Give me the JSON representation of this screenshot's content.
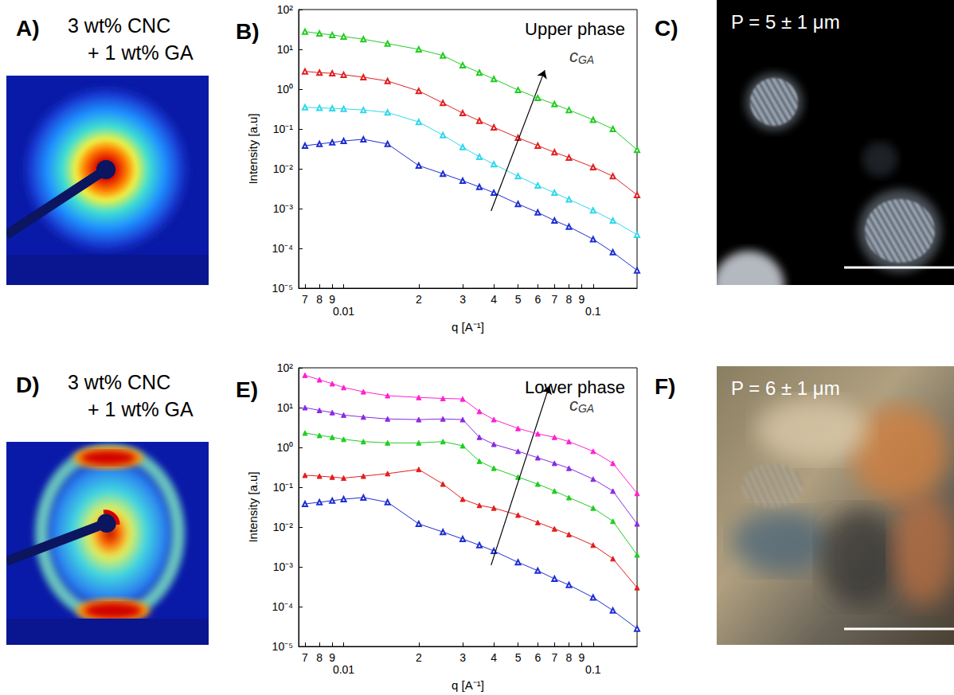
{
  "chart_data": [
    {
      "type": "line",
      "panel": "B)",
      "title": "Upper phase",
      "xlabel": "q [A⁻¹]",
      "ylabel": "Intensity [a.u]",
      "log": true,
      "grid": false,
      "xlim": [
        0.0066,
        0.15
      ],
      "ylim": [
        1e-05,
        100
      ],
      "xticks": [
        {
          "value": 0.007,
          "label": "7"
        },
        {
          "value": 0.008,
          "label": "8"
        },
        {
          "value": 0.009,
          "label": "9"
        },
        0.01,
        {
          "value": 0.02,
          "label": "2"
        },
        {
          "value": 0.03,
          "label": "3"
        },
        {
          "value": 0.04,
          "label": "4"
        },
        {
          "value": 0.05,
          "label": "5"
        },
        {
          "value": 0.06,
          "label": "6"
        },
        {
          "value": 0.07,
          "label": "7"
        },
        {
          "value": 0.08,
          "label": "8"
        },
        {
          "value": 0.09,
          "label": "9"
        },
        0.1
      ],
      "yticks": [
        {
          "value": 1e-05,
          "label": "10⁻⁵"
        },
        {
          "value": 0.0001,
          "label": "10⁻⁴"
        },
        {
          "value": 0.001,
          "label": "10⁻³"
        },
        {
          "value": 0.01,
          "label": "10⁻²"
        },
        {
          "value": 0.1,
          "label": "10⁻¹"
        },
        {
          "value": 1,
          "label": "10⁰"
        },
        {
          "value": 10,
          "label": "10¹"
        },
        {
          "value": 100,
          "label": "10²"
        }
      ],
      "x": [
        0.007,
        0.008,
        0.009,
        0.01,
        0.012,
        0.015,
        0.02,
        0.025,
        0.03,
        0.035,
        0.04,
        0.05,
        0.06,
        0.07,
        0.08,
        0.1,
        0.12,
        0.15
      ],
      "series": [
        {
          "color": "#1f2fd0",
          "marker": "triangle-open",
          "line_style": "solid",
          "values": [
            0.038,
            0.042,
            0.046,
            0.05,
            0.055,
            0.042,
            0.012,
            0.0075,
            0.005,
            0.0035,
            0.0025,
            0.0013,
            0.0008,
            0.0005,
            0.00035,
            0.00017,
            8e-05,
            2.8e-05
          ]
        },
        {
          "color": "#30d8ec",
          "marker": "triangle-open",
          "line_style": "solid",
          "values": [
            0.35,
            0.34,
            0.33,
            0.32,
            0.3,
            0.26,
            0.15,
            0.07,
            0.035,
            0.02,
            0.013,
            0.0065,
            0.0038,
            0.0025,
            0.0017,
            0.0009,
            0.0005,
            0.00022
          ]
        },
        {
          "color": "#e02020",
          "marker": "triangle-open",
          "line_style": "solid",
          "values": [
            2.8,
            2.6,
            2.5,
            2.3,
            2.0,
            1.6,
            0.9,
            0.45,
            0.25,
            0.16,
            0.11,
            0.06,
            0.038,
            0.026,
            0.019,
            0.011,
            0.0065,
            0.0022
          ]
        },
        {
          "color": "#22cc22",
          "marker": "triangle-open",
          "line_style": "solid",
          "values": [
            28,
            25,
            23,
            21,
            18,
            14,
            10,
            7,
            4,
            2.6,
            1.8,
            0.95,
            0.6,
            0.42,
            0.3,
            0.17,
            0.1,
            0.03
          ]
        }
      ],
      "annotation": {
        "text": "c",
        "subscript": "GA",
        "x": 0.09,
        "y": 6.9,
        "arrow": {
          "from": [
            0.039,
            0.00087
          ],
          "to": [
            0.064,
            3
          ]
        }
      }
    },
    {
      "type": "line",
      "panel": "E)",
      "title": "Lower phase",
      "xlabel": "q [A⁻¹]",
      "ylabel": "Intensity [a.u]",
      "log": true,
      "grid": false,
      "xlim": [
        0.0066,
        0.15
      ],
      "ylim": [
        1e-05,
        100
      ],
      "xticks": [
        {
          "value": 0.007,
          "label": "7"
        },
        {
          "value": 0.008,
          "label": "8"
        },
        {
          "value": 0.009,
          "label": "9"
        },
        0.01,
        {
          "value": 0.02,
          "label": "2"
        },
        {
          "value": 0.03,
          "label": "3"
        },
        {
          "value": 0.04,
          "label": "4"
        },
        {
          "value": 0.05,
          "label": "5"
        },
        {
          "value": 0.06,
          "label": "6"
        },
        {
          "value": 0.07,
          "label": "7"
        },
        {
          "value": 0.08,
          "label": "8"
        },
        {
          "value": 0.09,
          "label": "9"
        },
        0.1
      ],
      "yticks": [
        {
          "value": 1e-05,
          "label": "10⁻⁵"
        },
        {
          "value": 0.0001,
          "label": "10⁻⁴"
        },
        {
          "value": 0.001,
          "label": "10⁻³"
        },
        {
          "value": 0.01,
          "label": "10⁻²"
        },
        {
          "value": 0.1,
          "label": "10⁻¹"
        },
        {
          "value": 1,
          "label": "10⁰"
        },
        {
          "value": 10,
          "label": "10¹"
        },
        {
          "value": 100,
          "label": "10²"
        }
      ],
      "x": [
        0.007,
        0.008,
        0.009,
        0.01,
        0.012,
        0.015,
        0.02,
        0.025,
        0.03,
        0.035,
        0.04,
        0.05,
        0.06,
        0.07,
        0.08,
        0.1,
        0.12,
        0.15
      ],
      "series": [
        {
          "color": "#1f2fd0",
          "marker": "triangle-open",
          "line_style": "solid",
          "values": [
            0.038,
            0.042,
            0.046,
            0.05,
            0.055,
            0.042,
            0.012,
            0.0075,
            0.005,
            0.0035,
            0.0025,
            0.0013,
            0.0008,
            0.0005,
            0.00035,
            0.00017,
            8e-05,
            2.8e-05
          ]
        },
        {
          "color": "#e02020",
          "marker": "triangle",
          "line_style": "solid",
          "values": [
            0.2,
            0.19,
            0.18,
            0.17,
            0.19,
            0.22,
            0.28,
            0.12,
            0.05,
            0.035,
            0.03,
            0.02,
            0.013,
            0.009,
            0.0065,
            0.0035,
            0.0016,
            0.0003
          ]
        },
        {
          "color": "#22cc22",
          "marker": "triangle",
          "line_style": "solid",
          "values": [
            2.3,
            2.0,
            1.8,
            1.6,
            1.4,
            1.3,
            1.3,
            1.4,
            1.1,
            0.45,
            0.3,
            0.18,
            0.12,
            0.08,
            0.055,
            0.03,
            0.014,
            0.002
          ]
        },
        {
          "color": "#8a2be2",
          "marker": "triangle",
          "line_style": "solid",
          "values": [
            10,
            8.5,
            7.5,
            6.5,
            5.8,
            5.2,
            5.0,
            5.2,
            5.0,
            1.8,
            1.2,
            0.8,
            0.55,
            0.4,
            0.3,
            0.16,
            0.08,
            0.012
          ]
        },
        {
          "color": "#ff20d0",
          "marker": "triangle",
          "line_style": "solid",
          "values": [
            65,
            50,
            40,
            32,
            25,
            20,
            18,
            17,
            16.5,
            8,
            5,
            3,
            2.2,
            1.8,
            1.4,
            0.8,
            0.4,
            0.07
          ]
        }
      ],
      "annotation": {
        "text": "c",
        "subscript": "GA",
        "x": 0.09,
        "y": 12,
        "arrow": {
          "from": [
            0.039,
            0.0011
          ],
          "to": [
            0.0667,
            35
          ]
        }
      }
    }
  ],
  "panels": [
    {
      "letter": "A)",
      "lines": [
        "3 wt% CNC",
        "+ 1 wt% GA"
      ]
    },
    {
      "letter": "C)",
      "text": "P = 5 ± 1 μm"
    },
    {
      "letter": "D)",
      "lines": [
        "3 wt% CNC",
        "+ 1 wt% GA"
      ]
    },
    {
      "letter": "F)",
      "text": "P = 6 ± 1 μm"
    }
  ]
}
